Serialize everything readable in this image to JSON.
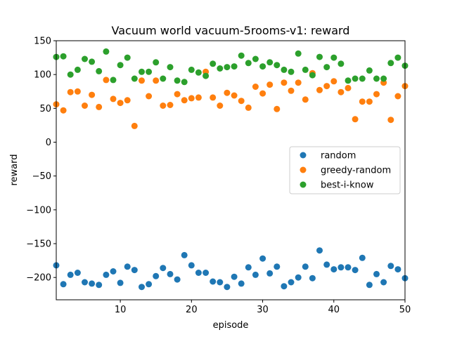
{
  "chart_data": {
    "type": "scatter",
    "title": "Vacuum world vacuum-5rooms-v1: reward",
    "xlabel": "episode",
    "ylabel": "reward",
    "xlim": [
      1,
      50
    ],
    "ylim": [
      -233,
      150
    ],
    "xticks": [
      10,
      20,
      30,
      40,
      50
    ],
    "yticks": [
      -200,
      -150,
      -100,
      -50,
      0,
      50,
      100,
      150
    ],
    "grid": false,
    "legend_position": "center-right",
    "series": [
      {
        "name": "random",
        "color": "#1f77b4",
        "x": [
          1,
          2,
          3,
          4,
          5,
          6,
          7,
          8,
          9,
          10,
          11,
          12,
          13,
          14,
          15,
          16,
          17,
          18,
          19,
          20,
          21,
          22,
          23,
          24,
          25,
          26,
          27,
          28,
          29,
          30,
          31,
          32,
          33,
          34,
          35,
          36,
          37,
          38,
          39,
          40,
          41,
          42,
          43,
          44,
          45,
          46,
          47,
          48,
          49,
          50
        ],
        "y": [
          -182,
          -210,
          -196,
          -193,
          -207,
          -209,
          -211,
          -196,
          -191,
          -208,
          -184,
          -189,
          -214,
          -210,
          -198,
          -186,
          -195,
          -203,
          -167,
          -182,
          -193,
          -193,
          -206,
          -207,
          -214,
          -199,
          -209,
          -185,
          -196,
          -172,
          -194,
          -184,
          -213,
          -207,
          -200,
          -184,
          -201,
          -160,
          -181,
          -188,
          -185,
          -185,
          -189,
          -171,
          -211,
          -195,
          -207,
          -183,
          -188,
          -201
        ]
      },
      {
        "name": "greedy-random",
        "color": "#ff7f0e",
        "x": [
          1,
          2,
          3,
          4,
          5,
          6,
          7,
          8,
          9,
          10,
          11,
          12,
          13,
          14,
          15,
          16,
          17,
          18,
          19,
          20,
          21,
          22,
          23,
          24,
          25,
          26,
          27,
          28,
          29,
          30,
          31,
          32,
          33,
          34,
          35,
          36,
          37,
          38,
          39,
          40,
          41,
          42,
          43,
          44,
          45,
          46,
          47,
          48,
          49,
          50
        ],
        "y": [
          56,
          47,
          74,
          75,
          54,
          70,
          52,
          92,
          64,
          58,
          62,
          24,
          91,
          68,
          91,
          54,
          55,
          71,
          62,
          65,
          66,
          104,
          66,
          54,
          73,
          69,
          61,
          51,
          82,
          72,
          85,
          49,
          88,
          76,
          88,
          63,
          102,
          77,
          83,
          90,
          74,
          80,
          34,
          60,
          60,
          71,
          88,
          33,
          68,
          83
        ]
      },
      {
        "name": "best-i-know",
        "color": "#2ca02c",
        "x": [
          1,
          2,
          3,
          4,
          5,
          6,
          7,
          8,
          9,
          10,
          11,
          12,
          13,
          14,
          15,
          16,
          17,
          18,
          19,
          20,
          21,
          22,
          23,
          24,
          25,
          26,
          27,
          28,
          29,
          30,
          31,
          32,
          33,
          34,
          35,
          36,
          37,
          38,
          39,
          40,
          41,
          42,
          43,
          44,
          45,
          46,
          47,
          48,
          49,
          50
        ],
        "y": [
          126,
          127,
          100,
          107,
          123,
          119,
          105,
          134,
          92,
          114,
          125,
          94,
          104,
          104,
          118,
          94,
          111,
          91,
          89,
          107,
          103,
          98,
          116,
          109,
          111,
          112,
          128,
          117,
          123,
          112,
          118,
          114,
          107,
          104,
          131,
          107,
          99,
          126,
          111,
          125,
          116,
          91,
          94,
          94,
          106,
          94,
          94,
          117,
          125,
          113
        ]
      }
    ]
  }
}
